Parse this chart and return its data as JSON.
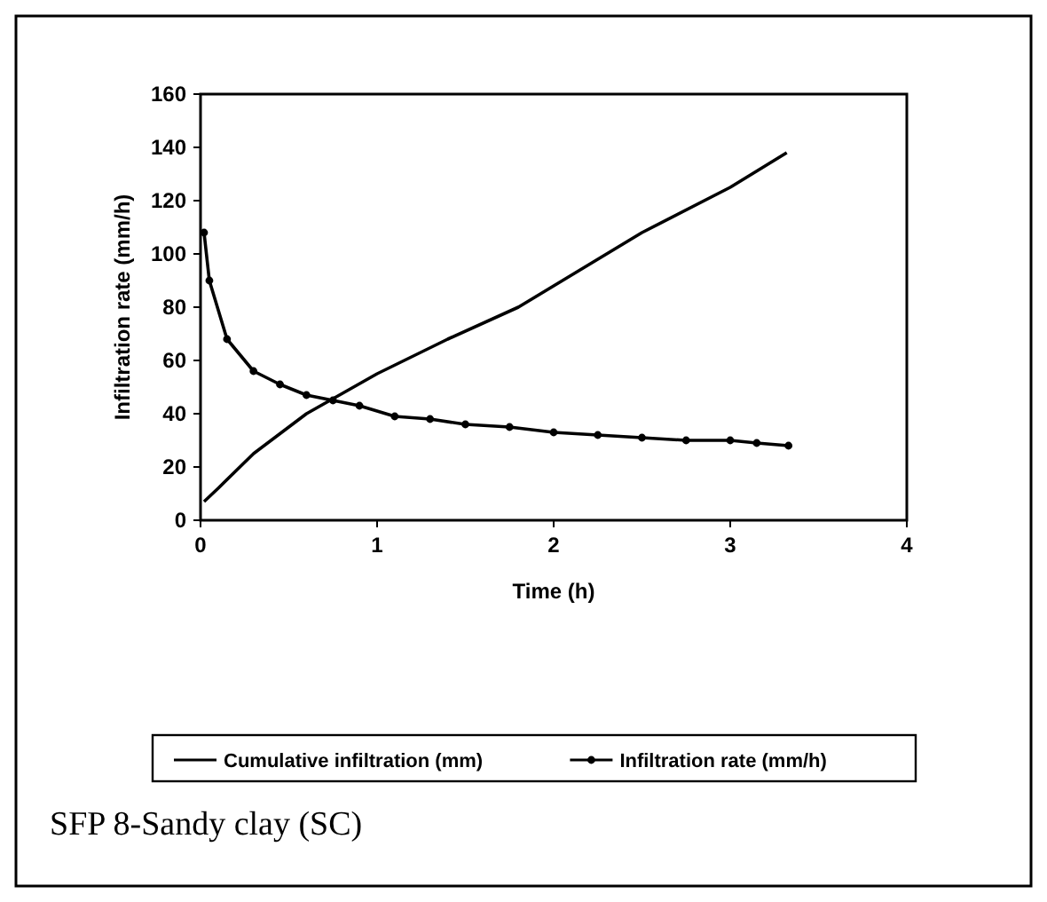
{
  "chart_data": {
    "type": "line",
    "xlabel": "Time (h)",
    "ylabel": "Infiltration rate (mm/h)",
    "xlim": [
      0,
      4
    ],
    "xticks": [
      0,
      1,
      2,
      3,
      4
    ],
    "ylim": [
      0,
      160
    ],
    "yticks": [
      0,
      20,
      40,
      60,
      80,
      100,
      120,
      140,
      160
    ],
    "legend": "bottom",
    "grid": false,
    "annotations": [
      "SFP 8-Sandy clay (SC)"
    ],
    "series": [
      {
        "name": "Cumulative infiltration (mm)",
        "color": "#000000",
        "marker": "none",
        "x": [
          0.02,
          0.1,
          0.3,
          0.6,
          1,
          1.4,
          1.8,
          2.05,
          2.15,
          2.5,
          3,
          3.32
        ],
        "values": [
          7,
          12,
          25,
          40,
          55,
          68,
          80,
          90,
          94,
          108,
          125,
          138
        ]
      },
      {
        "name": "Infiltration rate (mm/h)",
        "color": "#000000",
        "marker": "circle",
        "x": [
          0.02,
          0.05,
          0.15,
          0.3,
          0.45,
          0.6,
          0.75,
          0.9,
          1.1,
          1.3,
          1.5,
          1.75,
          2,
          2.25,
          2.5,
          2.75,
          3,
          3.15,
          3.33
        ],
        "values": [
          108,
          90,
          68,
          56,
          51,
          47,
          45,
          43,
          39,
          38,
          36,
          35,
          33,
          32,
          31,
          30,
          30,
          29,
          28
        ]
      }
    ]
  }
}
